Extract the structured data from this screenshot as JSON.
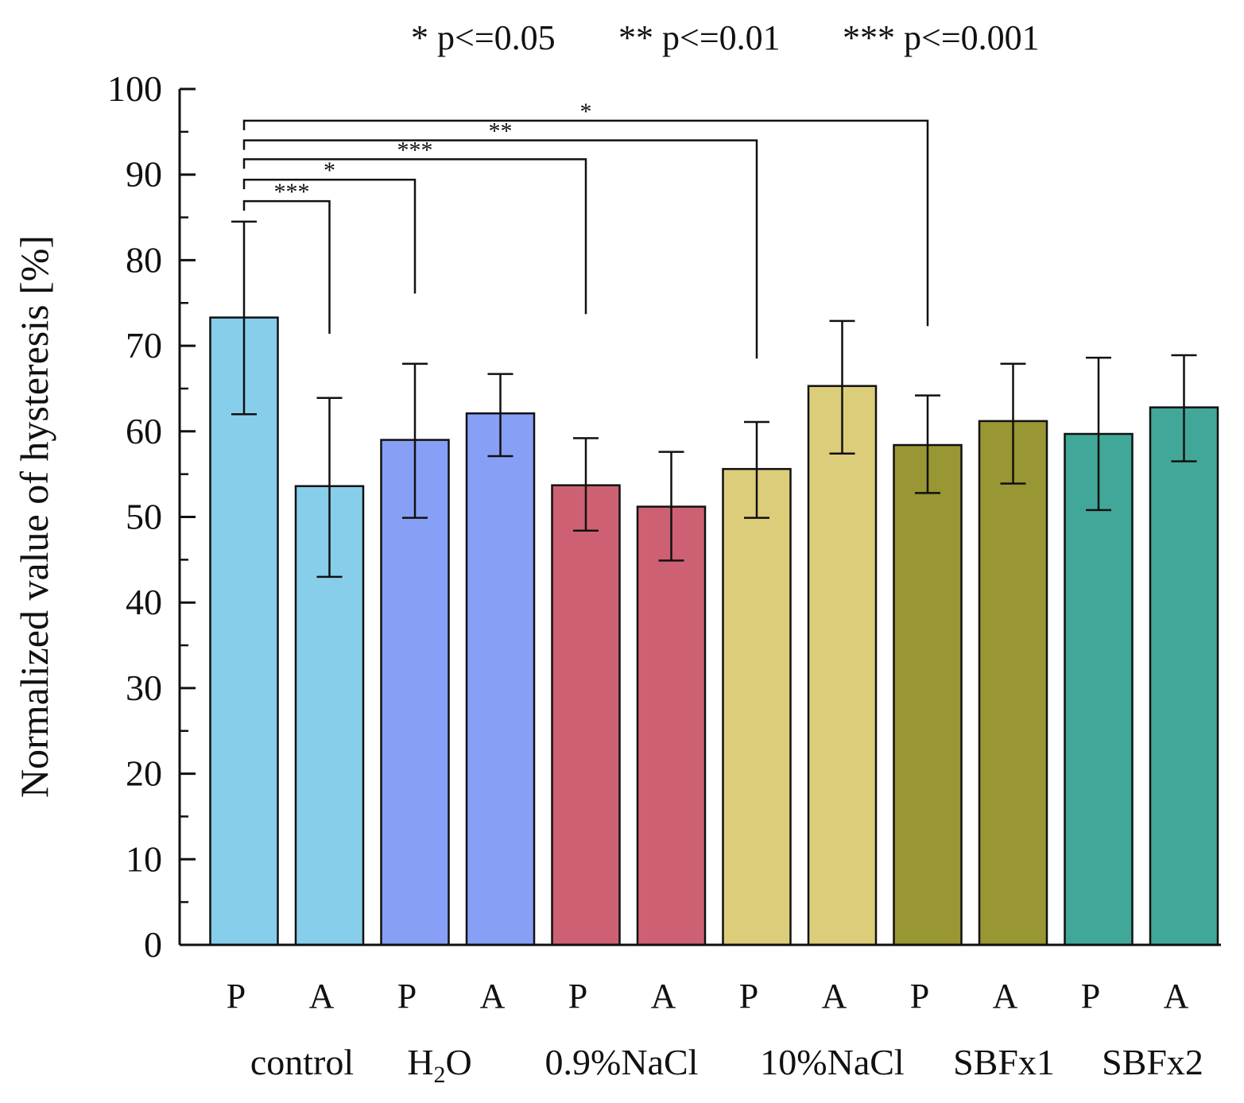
{
  "chart_data": {
    "type": "bar",
    "title": "",
    "significance_legend": [
      "* p<=0.05",
      "** p<=0.01",
      "*** p<=0.001"
    ],
    "ylabel": "Normalized value of hysteresis [%]",
    "xlabel": "",
    "ylim": [
      0,
      100
    ],
    "yticks": [
      "0",
      "10",
      "20",
      "30",
      "40",
      "50",
      "60",
      "70",
      "80",
      "90",
      "100"
    ],
    "grid": false,
    "groups": [
      {
        "name": "control",
        "color": "#87ceeb"
      },
      {
        "name": "H2O",
        "label_main": "H",
        "label_sub": "2",
        "label_tail": "O",
        "color": "#87a0f5"
      },
      {
        "name": "0.9%NaCl",
        "color": "#cd6173"
      },
      {
        "name": "10%NaCl",
        "color": "#dccd7a"
      },
      {
        "name": "SBFx1",
        "color": "#999634"
      },
      {
        "name": "SBFx2",
        "color": "#41a899"
      }
    ],
    "bars": [
      {
        "group": 0,
        "label": "P",
        "value": 73.3,
        "err_low": 62.0,
        "err_high": 84.5
      },
      {
        "group": 0,
        "label": "A",
        "value": 53.6,
        "err_low": 43.0,
        "err_high": 63.9
      },
      {
        "group": 1,
        "label": "P",
        "value": 59.0,
        "err_low": 49.9,
        "err_high": 67.9
      },
      {
        "group": 1,
        "label": "A",
        "value": 62.1,
        "err_low": 57.1,
        "err_high": 66.7
      },
      {
        "group": 2,
        "label": "P",
        "value": 53.7,
        "err_low": 48.4,
        "err_high": 59.2
      },
      {
        "group": 2,
        "label": "A",
        "value": 51.2,
        "err_low": 44.9,
        "err_high": 57.6
      },
      {
        "group": 3,
        "label": "P",
        "value": 55.6,
        "err_low": 49.9,
        "err_high": 61.1
      },
      {
        "group": 3,
        "label": "A",
        "value": 65.3,
        "err_low": 57.4,
        "err_high": 72.9
      },
      {
        "group": 4,
        "label": "P",
        "value": 58.4,
        "err_low": 52.8,
        "err_high": 64.2
      },
      {
        "group": 4,
        "label": "A",
        "value": 61.2,
        "err_low": 53.9,
        "err_high": 67.9
      },
      {
        "group": 5,
        "label": "P",
        "value": 59.7,
        "err_low": 50.8,
        "err_high": 68.6
      },
      {
        "group": 5,
        "label": "A",
        "value": 62.8,
        "err_low": 56.5,
        "err_high": 68.9
      }
    ],
    "significance": [
      {
        "from": 0,
        "to": 1,
        "label": "***",
        "bracket_y": 86.9,
        "end_y": 71.4
      },
      {
        "from": 0,
        "to": 2,
        "label": "*",
        "bracket_y": 89.4,
        "end_y": 76.1
      },
      {
        "from": 0,
        "to": 4,
        "label": "***",
        "bracket_y": 91.8,
        "end_y": 73.7
      },
      {
        "from": 0,
        "to": 6,
        "label": "**",
        "bracket_y": 94.0,
        "end_y": 68.5
      },
      {
        "from": 0,
        "to": 8,
        "label": "*",
        "bracket_y": 96.3,
        "end_y": 72.3
      }
    ]
  }
}
